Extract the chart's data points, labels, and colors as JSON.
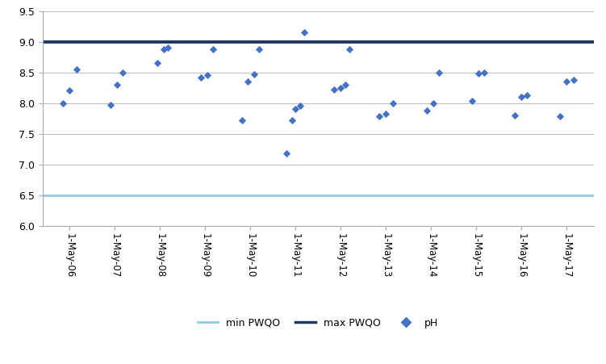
{
  "x_labels": [
    "1-May-06",
    "1-May-07",
    "1-May-08",
    "1-May-09",
    "1-May-10",
    "1-May-11",
    "1-May-12",
    "1-May-13",
    "1-May-14",
    "1-May-15",
    "1-May-16",
    "1-May-17"
  ],
  "x_positions": [
    0,
    1,
    2,
    3,
    4,
    5,
    6,
    7,
    8,
    9,
    10,
    11
  ],
  "ph_data": [
    [
      0,
      -0.15,
      8.0
    ],
    [
      0,
      0.0,
      8.2
    ],
    [
      0,
      0.15,
      8.55
    ],
    [
      1,
      -0.1,
      7.97
    ],
    [
      1,
      0.05,
      8.3
    ],
    [
      1,
      0.18,
      8.5
    ],
    [
      2,
      -0.05,
      8.65
    ],
    [
      2,
      0.08,
      8.87
    ],
    [
      2,
      0.18,
      8.9
    ],
    [
      3,
      -0.1,
      8.42
    ],
    [
      3,
      0.05,
      8.45
    ],
    [
      3,
      0.18,
      8.88
    ],
    [
      4,
      -0.18,
      7.72
    ],
    [
      4,
      -0.05,
      8.35
    ],
    [
      4,
      0.08,
      8.47
    ],
    [
      4,
      0.2,
      8.88
    ],
    [
      5,
      -0.2,
      7.18
    ],
    [
      5,
      -0.08,
      7.72
    ],
    [
      5,
      0.0,
      7.9
    ],
    [
      5,
      0.1,
      7.95
    ],
    [
      5,
      0.2,
      9.15
    ],
    [
      6,
      -0.15,
      8.22
    ],
    [
      6,
      0.0,
      8.25
    ],
    [
      6,
      0.1,
      8.3
    ],
    [
      6,
      0.2,
      8.87
    ],
    [
      7,
      -0.15,
      7.78
    ],
    [
      7,
      0.0,
      7.82
    ],
    [
      7,
      0.15,
      8.0
    ],
    [
      8,
      -0.1,
      7.88
    ],
    [
      8,
      0.05,
      8.0
    ],
    [
      8,
      0.18,
      8.5
    ],
    [
      9,
      -0.1,
      8.03
    ],
    [
      9,
      0.05,
      8.48
    ],
    [
      9,
      0.18,
      8.5
    ],
    [
      10,
      -0.15,
      7.8
    ],
    [
      10,
      0.0,
      8.1
    ],
    [
      10,
      0.12,
      8.13
    ],
    [
      11,
      -0.15,
      7.78
    ],
    [
      11,
      0.0,
      8.35
    ],
    [
      11,
      0.15,
      8.38
    ]
  ],
  "min_pwqo": 6.5,
  "max_pwqo": 9.0,
  "ylim": [
    6.0,
    9.5
  ],
  "yticks": [
    6.0,
    6.5,
    7.0,
    7.5,
    8.0,
    8.5,
    9.0,
    9.5
  ],
  "min_color": "#92CDDC",
  "max_color": "#1F3864",
  "scatter_color": "#4472C4",
  "background_color": "#FFFFFF",
  "grid_color": "#BFBFBF",
  "legend_labels": [
    "min PWQO",
    "max PWQO",
    "pH"
  ]
}
